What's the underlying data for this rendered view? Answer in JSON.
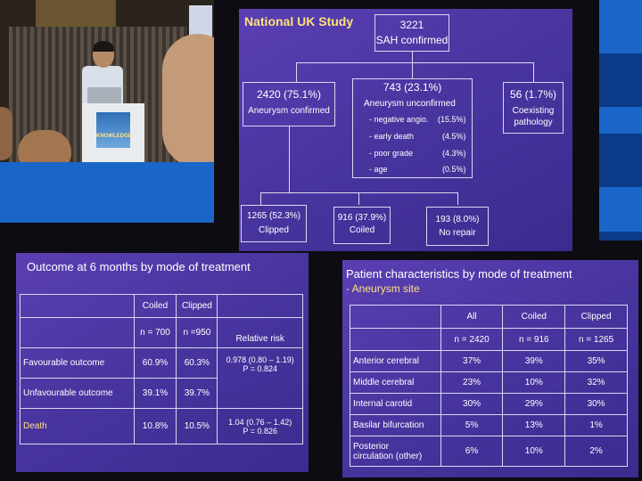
{
  "photo": {
    "podium_logo_text": "KNOWLEDGE"
  },
  "flowchart": {
    "title": "National UK Study",
    "top": {
      "count": "3221",
      "label": "SAH confirmed"
    },
    "left": {
      "count": "2420 (75.1%)",
      "label": "Aneurysm confirmed"
    },
    "middle": {
      "count": "743 (23.1%)",
      "label": "Aneurysm unconfirmed",
      "reasons": [
        {
          "label": "- negative angio.",
          "pct": "(15.5%)"
        },
        {
          "label": "- early death",
          "pct": "(4.5%)"
        },
        {
          "label": "- poor grade",
          "pct": "(4.3%)"
        },
        {
          "label": "- age",
          "pct": "(0.5%)"
        }
      ]
    },
    "right": {
      "count": "56 (1.7%)",
      "label_line1": "Coexisting",
      "label_line2": "pathology"
    },
    "bottom": [
      {
        "count": "1265 (52.3%)",
        "label": "Clipped"
      },
      {
        "count": "916 (37.9%)",
        "label": "Coiled"
      },
      {
        "count": "193 (8.0%)",
        "label": "No repair"
      }
    ]
  },
  "outcome": {
    "title": "Outcome at 6 months by mode of treatment",
    "header": {
      "coiled": "Coiled",
      "clipped": "Clipped",
      "n_coiled": "n = 700",
      "n_clipped": "n =950",
      "rr": "Relative risk"
    },
    "rows": [
      {
        "label": "Favourable outcome",
        "coiled": "60.9%",
        "clipped": "60.3%",
        "rr_line1": "0.978 (0.80 – 1.19)",
        "rr_line2": "P = 0.824"
      },
      {
        "label": "Unfavourable outcome",
        "coiled": "39.1%",
        "clipped": "39.7%"
      },
      {
        "label": "Death",
        "coiled": "10.8%",
        "clipped": "10.5%",
        "rr_line1": "1.04 (0.76 – 1.42)",
        "rr_line2": "P = 0.826"
      }
    ]
  },
  "characteristics": {
    "title": "Patient characteristics by mode of treatment",
    "subtitle": "- Aneurysm site",
    "header": {
      "all": "All",
      "coiled": "Coiled",
      "clipped": "Clipped",
      "n_all": "n = 2420",
      "n_coiled": "n = 916",
      "n_clipped": "n = 1265"
    },
    "rows": [
      {
        "label": "Anterior cerebral",
        "all": "37%",
        "coiled": "39%",
        "clipped": "35%"
      },
      {
        "label": "Middle cerebral",
        "all": "23%",
        "coiled": "10%",
        "clipped": "32%"
      },
      {
        "label": "Internal carotid",
        "all": "30%",
        "coiled": "29%",
        "clipped": "30%"
      },
      {
        "label": "Basilar bifurcation",
        "all": "5%",
        "coiled": "13%",
        "clipped": "1%"
      },
      {
        "label_line1": "Posterior",
        "label_line2": "circulation (other)",
        "all": "6%",
        "coiled": "10%",
        "clipped": "2%"
      }
    ]
  }
}
